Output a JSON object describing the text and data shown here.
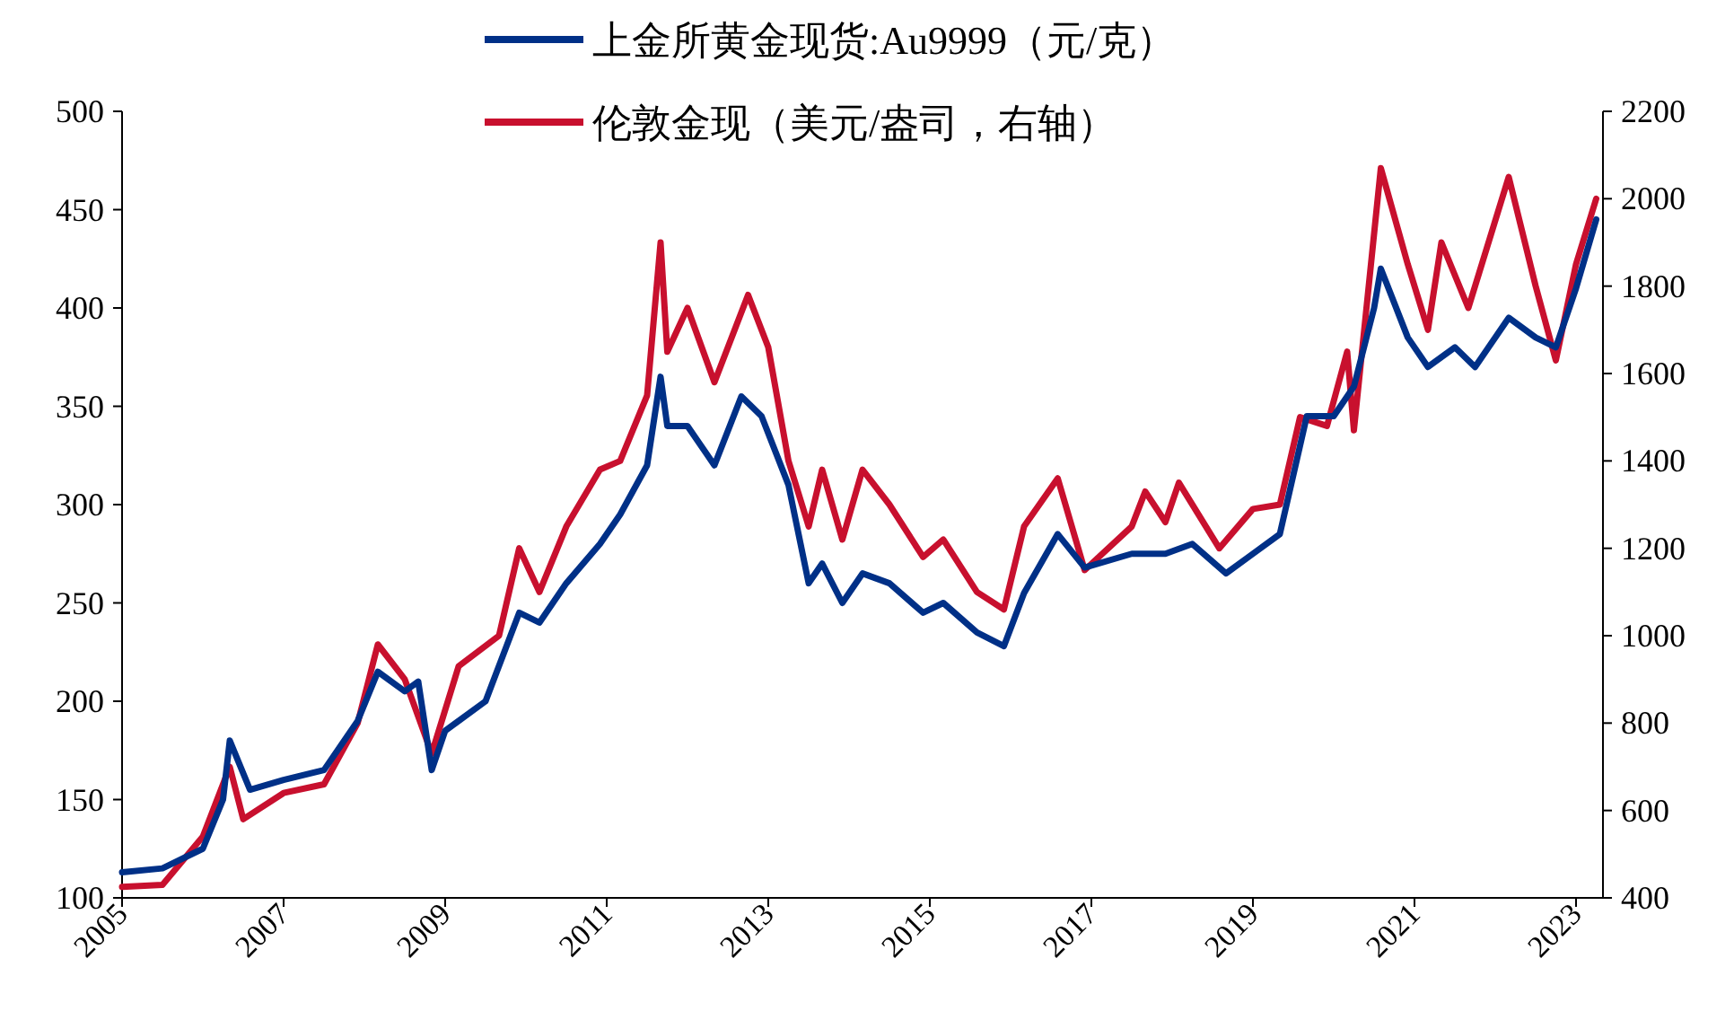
{
  "chart_data": {
    "type": "line",
    "legend": "top",
    "grid": false,
    "xlim": [
      "2005-01-01",
      "2023-05-01"
    ],
    "xticks": [
      "2005",
      "2007",
      "2009",
      "2011",
      "2013",
      "2015",
      "2017",
      "2019",
      "2021",
      "2023"
    ],
    "ylim": [
      100,
      500
    ],
    "yticks": [
      100,
      150,
      200,
      250,
      300,
      350,
      400,
      450,
      500
    ],
    "y2lim": [
      400,
      2200
    ],
    "y2ticks": [
      400,
      600,
      800,
      1000,
      1200,
      1400,
      1600,
      1800,
      2000,
      2200
    ],
    "series": [
      {
        "name": "上金所黄金现货:Au9999（元/克）",
        "color": "#003087",
        "x": [
          "2005-01",
          "2005-07",
          "2006-01",
          "2006-04",
          "2006-05",
          "2006-08",
          "2007-01",
          "2007-07",
          "2007-12",
          "2008-03",
          "2008-07",
          "2008-09",
          "2008-11",
          "2009-01",
          "2009-07",
          "2009-12",
          "2010-03",
          "2010-07",
          "2010-12",
          "2011-03",
          "2011-07",
          "2011-09",
          "2011-10",
          "2012-01",
          "2012-05",
          "2012-09",
          "2012-12",
          "2013-04",
          "2013-07",
          "2013-09",
          "2013-12",
          "2014-03",
          "2014-07",
          "2014-12",
          "2015-03",
          "2015-08",
          "2015-12",
          "2016-03",
          "2016-08",
          "2016-12",
          "2017-07",
          "2017-12",
          "2018-04",
          "2018-09",
          "2019-01",
          "2019-05",
          "2019-09",
          "2020-01",
          "2020-04",
          "2020-07",
          "2020-08",
          "2020-12",
          "2021-03",
          "2021-07",
          "2021-10",
          "2022-03",
          "2022-07",
          "2022-10",
          "2023-01",
          "2023-04"
        ],
        "values": [
          113,
          115,
          125,
          150,
          180,
          155,
          160,
          165,
          190,
          215,
          205,
          210,
          165,
          185,
          200,
          245,
          240,
          260,
          280,
          295,
          320,
          365,
          340,
          340,
          320,
          355,
          345,
          310,
          260,
          270,
          250,
          265,
          260,
          245,
          250,
          235,
          228,
          255,
          285,
          268,
          275,
          275,
          280,
          265,
          275,
          285,
          345,
          345,
          360,
          400,
          420,
          385,
          370,
          380,
          370,
          395,
          385,
          380,
          410,
          445
        ]
      },
      {
        "name": "伦敦金现（美元/盎司，右轴）",
        "color": "#c8102e",
        "axis": "y2",
        "x": [
          "2005-01",
          "2005-07",
          "2006-01",
          "2006-05",
          "2006-07",
          "2007-01",
          "2007-07",
          "2007-12",
          "2008-03",
          "2008-07",
          "2008-11",
          "2009-03",
          "2009-09",
          "2009-12",
          "2010-03",
          "2010-07",
          "2010-12",
          "2011-03",
          "2011-07",
          "2011-09",
          "2011-10",
          "2012-01",
          "2012-05",
          "2012-10",
          "2013-01",
          "2013-04",
          "2013-07",
          "2013-09",
          "2013-12",
          "2014-03",
          "2014-07",
          "2014-12",
          "2015-03",
          "2015-08",
          "2015-12",
          "2016-03",
          "2016-08",
          "2016-12",
          "2017-07",
          "2017-09",
          "2017-12",
          "2018-02",
          "2018-08",
          "2019-01",
          "2019-05",
          "2019-08",
          "2019-12",
          "2020-03",
          "2020-04",
          "2020-08",
          "2020-12",
          "2021-03",
          "2021-05",
          "2021-09",
          "2022-03",
          "2022-07",
          "2022-10",
          "2023-01",
          "2023-04"
        ],
        "values": [
          425,
          430,
          540,
          700,
          580,
          640,
          660,
          800,
          980,
          900,
          730,
          930,
          1000,
          1200,
          1100,
          1250,
          1380,
          1400,
          1550,
          1900,
          1650,
          1750,
          1580,
          1780,
          1660,
          1400,
          1250,
          1380,
          1220,
          1380,
          1300,
          1180,
          1220,
          1100,
          1060,
          1250,
          1360,
          1150,
          1250,
          1330,
          1260,
          1350,
          1200,
          1290,
          1300,
          1500,
          1480,
          1650,
          1470,
          2070,
          1850,
          1700,
          1900,
          1750,
          2050,
          1800,
          1630,
          1850,
          2000
        ]
      }
    ]
  }
}
